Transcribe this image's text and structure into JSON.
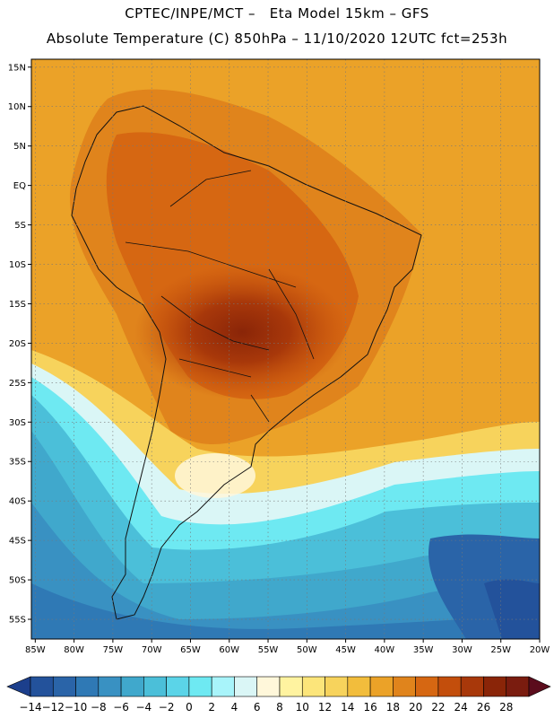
{
  "header": {
    "line1": "CPTEC/INPE/MCT –   Eta Model 15km – GFS",
    "line2": "Absolute Temperature (C) 850hPa – 11/10/2020 12UTC fct=253h"
  },
  "map": {
    "lat_ticks": [
      "15N",
      "10N",
      "5N",
      "EQ",
      "5S",
      "10S",
      "15S",
      "20S",
      "25S",
      "30S",
      "35S",
      "40S",
      "45S",
      "50S",
      "55S"
    ],
    "lon_ticks": [
      "85W",
      "80W",
      "75W",
      "70W",
      "65W",
      "60W",
      "55W",
      "50W",
      "45W",
      "40W",
      "35W",
      "30W",
      "25W",
      "20W"
    ],
    "extent": {
      "lon": [
        -85.5,
        -20
      ],
      "lat": [
        -57.5,
        16
      ]
    }
  },
  "colorbar": {
    "labels": [
      "-14",
      "-12",
      "-10",
      "-8",
      "-6",
      "-4",
      "-2",
      "0",
      "2",
      "4",
      "6",
      "8",
      "10",
      "12",
      "14",
      "16",
      "18",
      "20",
      "22",
      "24",
      "26",
      "28"
    ],
    "colors": [
      "#1c3f8c",
      "#23529b",
      "#2a64a8",
      "#2f79b5",
      "#3991c2",
      "#40a8cc",
      "#4bbfd9",
      "#5bd4e8",
      "#6ee9f2",
      "#a8f4fa",
      "#daf6f6",
      "#fff7da",
      "#fff3a0",
      "#fce57a",
      "#f7d35c",
      "#f2bd3c",
      "#eba228",
      "#e0841c",
      "#d66712",
      "#c34e0c",
      "#a8380a",
      "#8a2508",
      "#7a1c0f",
      "#5b0c1c"
    ]
  }
}
